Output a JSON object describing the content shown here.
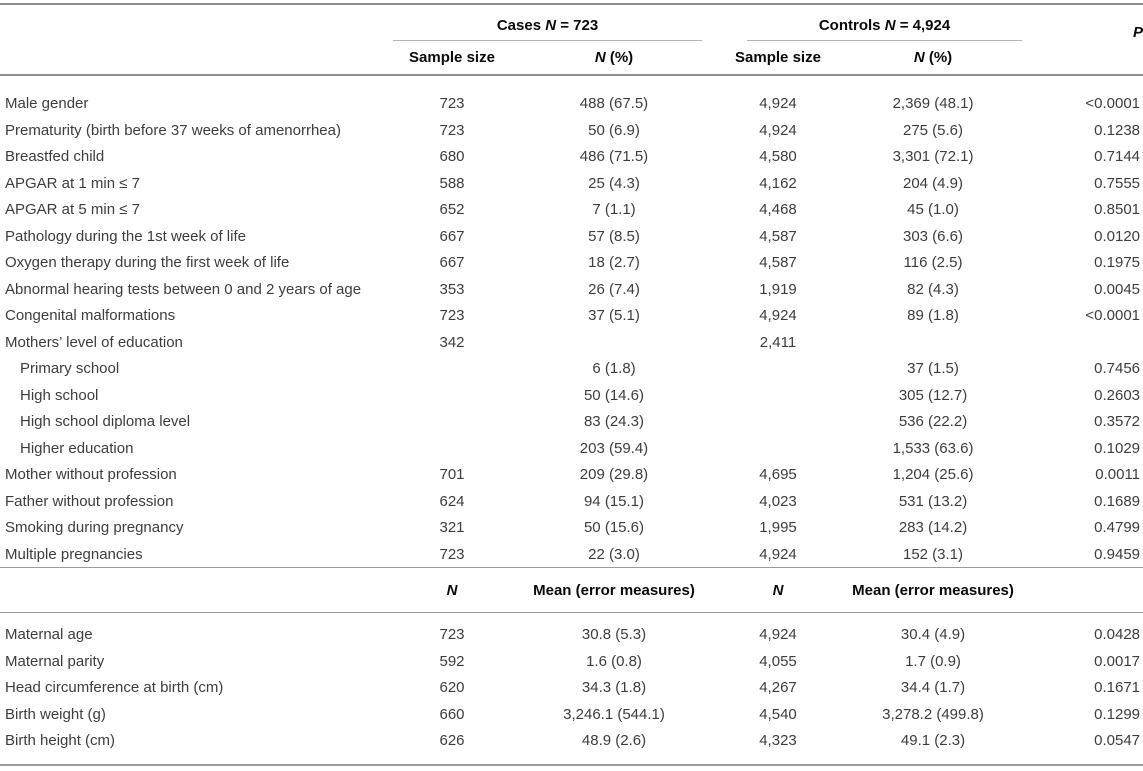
{
  "colors": {
    "background": "#ffffff",
    "body_text": "#3d3d3d",
    "header_text": "#0a0a0a",
    "rule_dark": "#8f8f8f",
    "rule_mid": "#9b9b9b",
    "rule_light": "#b5b5b5"
  },
  "table": {
    "header": {
      "cases": {
        "prefix": "Cases ",
        "n": "N",
        "suffix": " = 723"
      },
      "controls": {
        "prefix": "Controls ",
        "n": "N",
        "suffix": " = 4,924"
      },
      "p": "P",
      "sub": {
        "cases_sample_size": "Sample size",
        "cases_n": "N",
        "cases_pct": " (%)",
        "controls_sample_size": "Sample size",
        "controls_n": "N",
        "controls_pct": " (%)"
      }
    },
    "midheader": {
      "cases_n": "N",
      "cases_mean": "Mean (error measures)",
      "controls_n": "N",
      "controls_mean": "Mean (error measures)"
    },
    "section1": {
      "rows": [
        {
          "label": "Male gender",
          "indent": false,
          "cases_sample_size": "723",
          "cases_n_pct": "488 (67.5)",
          "controls_sample_size": "4,924",
          "controls_n_pct": "2,369 (48.1)",
          "p": "<0.0001"
        },
        {
          "label": "Prematurity (birth before 37 weeks of amenorrhea)",
          "indent": false,
          "cases_sample_size": "723",
          "cases_n_pct": "50 (6.9)",
          "controls_sample_size": "4,924",
          "controls_n_pct": "275 (5.6)",
          "p": "0.1238"
        },
        {
          "label": "Breastfed child",
          "indent": false,
          "cases_sample_size": "680",
          "cases_n_pct": "486 (71.5)",
          "controls_sample_size": "4,580",
          "controls_n_pct": "3,301 (72.1)",
          "p": "0.7144"
        },
        {
          "label": "APGAR at 1 min ≤ 7",
          "indent": false,
          "cases_sample_size": "588",
          "cases_n_pct": "25 (4.3)",
          "controls_sample_size": "4,162",
          "controls_n_pct": "204 (4.9)",
          "p": "0.7555"
        },
        {
          "label": "APGAR at 5 min ≤ 7",
          "indent": false,
          "cases_sample_size": "652",
          "cases_n_pct": "7 (1.1)",
          "controls_sample_size": "4,468",
          "controls_n_pct": "45 (1.0)",
          "p": "0.8501"
        },
        {
          "label": "Pathology during the 1st week of life",
          "indent": false,
          "cases_sample_size": "667",
          "cases_n_pct": "57 (8.5)",
          "controls_sample_size": "4,587",
          "controls_n_pct": "303 (6.6)",
          "p": "0.0120"
        },
        {
          "label": "Oxygen therapy during the first week of life",
          "indent": false,
          "cases_sample_size": "667",
          "cases_n_pct": "18 (2.7)",
          "controls_sample_size": "4,587",
          "controls_n_pct": "116 (2.5)",
          "p": "0.1975"
        },
        {
          "label": "Abnormal hearing tests between 0 and 2 years of age",
          "indent": false,
          "cases_sample_size": "353",
          "cases_n_pct": "26 (7.4)",
          "controls_sample_size": "1,919",
          "controls_n_pct": "82 (4.3)",
          "p": "0.0045"
        },
        {
          "label": "Congenital malformations",
          "indent": false,
          "cases_sample_size": "723",
          "cases_n_pct": "37 (5.1)",
          "controls_sample_size": "4,924",
          "controls_n_pct": "89 (1.8)",
          "p": "<0.0001"
        },
        {
          "label": "Mothers’ level of education",
          "indent": false,
          "cases_sample_size": "342",
          "cases_n_pct": "",
          "controls_sample_size": "2,411",
          "controls_n_pct": "",
          "p": ""
        },
        {
          "label": "Primary school",
          "indent": true,
          "cases_sample_size": "",
          "cases_n_pct": "6 (1.8)",
          "controls_sample_size": "",
          "controls_n_pct": "37 (1.5)",
          "p": "0.7456"
        },
        {
          "label": "High school",
          "indent": true,
          "cases_sample_size": "",
          "cases_n_pct": "50 (14.6)",
          "controls_sample_size": "",
          "controls_n_pct": "305 (12.7)",
          "p": "0.2603"
        },
        {
          "label": "High school diploma level",
          "indent": true,
          "cases_sample_size": "",
          "cases_n_pct": "83 (24.3)",
          "controls_sample_size": "",
          "controls_n_pct": "536 (22.2)",
          "p": "0.3572"
        },
        {
          "label": "Higher education",
          "indent": true,
          "cases_sample_size": "",
          "cases_n_pct": "203 (59.4)",
          "controls_sample_size": "",
          "controls_n_pct": "1,533 (63.6)",
          "p": "0.1029"
        },
        {
          "label": "Mother without profession",
          "indent": false,
          "cases_sample_size": "701",
          "cases_n_pct": "209 (29.8)",
          "controls_sample_size": "4,695",
          "controls_n_pct": "1,204 (25.6)",
          "p": "0.0011"
        },
        {
          "label": "Father without profession",
          "indent": false,
          "cases_sample_size": "624",
          "cases_n_pct": "94 (15.1)",
          "controls_sample_size": "4,023",
          "controls_n_pct": "531 (13.2)",
          "p": "0.1689"
        },
        {
          "label": "Smoking during pregnancy",
          "indent": false,
          "cases_sample_size": "321",
          "cases_n_pct": "50 (15.6)",
          "controls_sample_size": "1,995",
          "controls_n_pct": "283 (14.2)",
          "p": "0.4799"
        },
        {
          "label": "Multiple pregnancies",
          "indent": false,
          "cases_sample_size": "723",
          "cases_n_pct": "22 (3.0)",
          "controls_sample_size": "4,924",
          "controls_n_pct": "152 (3.1)",
          "p": "0.9459"
        }
      ]
    },
    "section2": {
      "rows": [
        {
          "label": "Maternal age",
          "indent": false,
          "cases_n": "723",
          "cases_mean": "30.8 (5.3)",
          "controls_n": "4,924",
          "controls_mean": "30.4 (4.9)",
          "p": "0.0428"
        },
        {
          "label": "Maternal parity",
          "indent": false,
          "cases_n": "592",
          "cases_mean": "1.6 (0.8)",
          "controls_n": "4,055",
          "controls_mean": "1.7 (0.9)",
          "p": "0.0017"
        },
        {
          "label": "Head circumference at birth (cm)",
          "indent": false,
          "cases_n": "620",
          "cases_mean": "34.3 (1.8)",
          "controls_n": "4,267",
          "controls_mean": "34.4 (1.7)",
          "p": "0.1671"
        },
        {
          "label": "Birth weight (g)",
          "indent": false,
          "cases_n": "660",
          "cases_mean": "3,246.1 (544.1)",
          "controls_n": "4,540",
          "controls_mean": "3,278.2 (499.8)",
          "p": "0.1299"
        },
        {
          "label": "Birth height (cm)",
          "indent": false,
          "cases_n": "626",
          "cases_mean": "48.9 (2.6)",
          "controls_n": "4,323",
          "controls_mean": "49.1 (2.3)",
          "p": "0.0547"
        }
      ]
    }
  }
}
